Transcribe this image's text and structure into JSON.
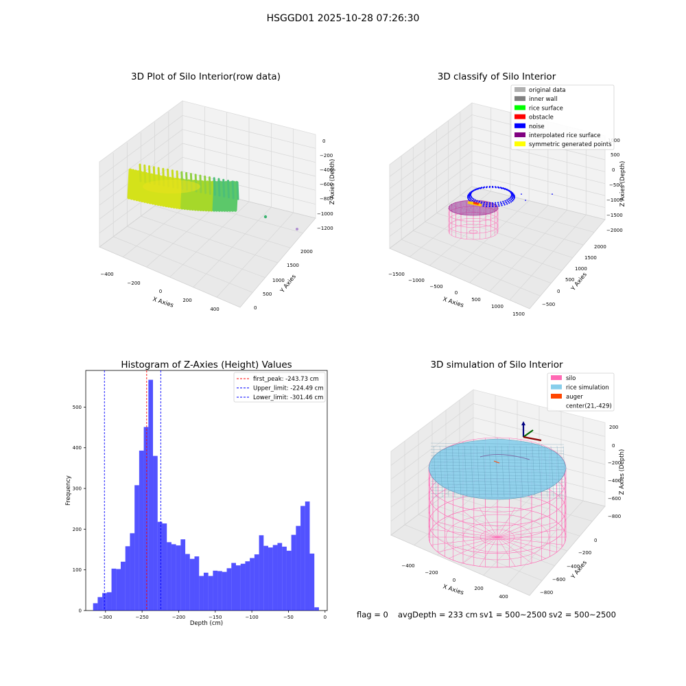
{
  "figure": {
    "suptitle": "HSGGD01 2025-10-28 07:26:30",
    "footer": {
      "flag": "flag = 0",
      "avg_depth": "avgDepth = 233 cm",
      "sv1": "sv1 = 500~2500",
      "sv2": "sv2 = 500~2500"
    }
  },
  "panels": {
    "raw": {
      "title": "3D Plot of Silo Interior(row data)",
      "xlabel": "X Axies",
      "ylabel": "Y Axies",
      "zlabel": "Z Axies (Depth)",
      "xticks": [
        "−400",
        "−200",
        "0",
        "200",
        "400"
      ],
      "yticks": [
        "0",
        "500",
        "1000",
        "1500",
        "2000"
      ],
      "zticks": [
        "0",
        "−200",
        "−400",
        "−600",
        "−800",
        "−1000",
        "−1200"
      ]
    },
    "classify": {
      "title": "3D classify of Silo Interior",
      "xlabel": "X Axies",
      "ylabel": "Y Axies",
      "zlabel": "Z Axies (Depth)",
      "xticks": [
        "−1500",
        "−1000",
        "−500",
        "0",
        "500",
        "1000",
        "1500"
      ],
      "yticks": [
        "−500",
        "0",
        "500",
        "1000",
        "1500",
        "2000"
      ],
      "zticks": [
        "1000",
        "500",
        "0",
        "−500",
        "−1000",
        "−1500",
        "−2000"
      ],
      "legend": [
        {
          "label": "original data",
          "color": "#b0b0b0"
        },
        {
          "label": "inner wall",
          "color": "#808080"
        },
        {
          "label": "rice surface",
          "color": "#00ff00"
        },
        {
          "label": "obstacle",
          "color": "#ff0000"
        },
        {
          "label": "noise",
          "color": "#0000ff"
        },
        {
          "label": "interpolated rice surface",
          "color": "#800080"
        },
        {
          "label": "symmetric generated points",
          "color": "#ffff00"
        }
      ]
    },
    "simulation": {
      "title": "3D simulation of Silo Interior",
      "xlabel": "X Axies",
      "ylabel": "Y Axies",
      "zlabel": "Z Axies (Depth)",
      "xticks": [
        "−400",
        "−200",
        "0",
        "200",
        "400"
      ],
      "yticks": [
        "0",
        "−200",
        "−400",
        "−600",
        "−800"
      ],
      "zticks": [
        "200",
        "0",
        "−200",
        "−400",
        "−600",
        "−800"
      ],
      "legend": [
        {
          "label": "silo",
          "color": "#ff69b4"
        },
        {
          "label": "rice simulation",
          "color": "#87ceeb"
        },
        {
          "label": "auger",
          "color": "#ff4500"
        },
        {
          "label": "center(21,-429)",
          "color": "none"
        }
      ]
    }
  },
  "chart_data": [
    {
      "type": "bar",
      "title": "Histogram of Z-Axies (Height) Values",
      "xlabel": "Depth (cm)",
      "ylabel": "Frequency",
      "xlim": [
        -327,
        3
      ],
      "ylim": [
        0,
        590
      ],
      "xticks": [
        -300,
        -250,
        -200,
        -150,
        -100,
        -50,
        0
      ],
      "xtick_labels": [
        "−300",
        "−250",
        "−200",
        "−150",
        "−100",
        "−50",
        "0"
      ],
      "yticks": [
        0,
        100,
        200,
        300,
        400,
        500
      ],
      "yticks_labels": [
        "0",
        "100",
        "200",
        "300",
        "400",
        "500"
      ],
      "bar_color": "#0000ff",
      "bar_opacity": 0.68,
      "bin_start": -317,
      "bin_width": 6.3,
      "counts": [
        18,
        33,
        43,
        45,
        103,
        102,
        120,
        158,
        190,
        308,
        393,
        451,
        567,
        380,
        218,
        214,
        168,
        163,
        160,
        175,
        139,
        127,
        133,
        85,
        93,
        85,
        98,
        97,
        95,
        104,
        117,
        111,
        115,
        121,
        129,
        138,
        185,
        159,
        155,
        161,
        166,
        157,
        147,
        186,
        208,
        257,
        268,
        140,
        8
      ],
      "vlines": [
        {
          "x": -243.73,
          "color": "#ff0000",
          "label": "first_peak: -243.73 cm"
        },
        {
          "x": -224.49,
          "color": "#0000ff",
          "label": "Upper_limit: -224.49 cm"
        },
        {
          "x": -301.46,
          "color": "#0000ff",
          "label": "Lower_limit: -301.46 cm"
        }
      ],
      "legend_position": "top-right"
    }
  ]
}
